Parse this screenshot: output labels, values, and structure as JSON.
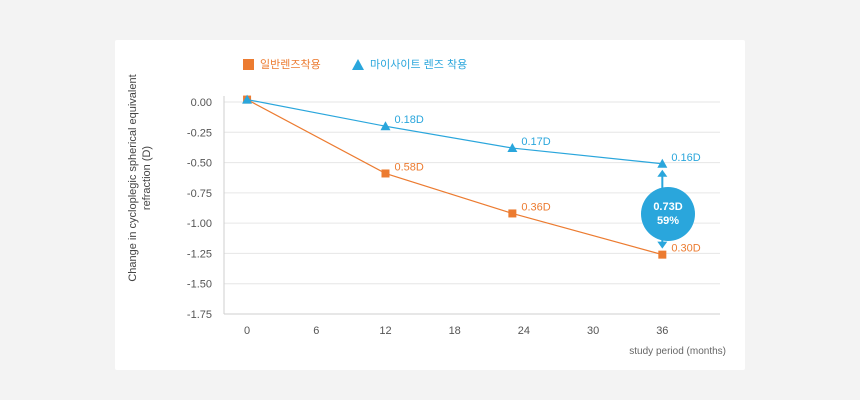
{
  "chart_data": {
    "type": "line",
    "ylabel": "Change in cycloplegic spherical equivalent refraction (D)",
    "xlabel": "study period (months)",
    "x_ticks": [
      0,
      6,
      12,
      18,
      24,
      30,
      36
    ],
    "y_ticks": [
      "0.00",
      "-0.25",
      "-0.50",
      "-0.75",
      "-1.00",
      "-1.25",
      "-1.50",
      "-1.75"
    ],
    "xlim": [
      -2,
      41
    ],
    "ylim": [
      -1.75,
      0.0
    ],
    "grid": true,
    "series": [
      {
        "name": "일반렌즈착용",
        "color": "#ec7b30",
        "marker": "square",
        "x": [
          0,
          12,
          23,
          36
        ],
        "y": [
          0.02,
          -0.59,
          -0.92,
          -1.26
        ],
        "labels": [
          "",
          "0.58D",
          "0.36D",
          "0.30D"
        ]
      },
      {
        "name": "마이사이트 렌즈 착용",
        "color": "#2aa6dc",
        "marker": "triangle",
        "x": [
          0,
          12,
          23,
          36
        ],
        "y": [
          0.02,
          -0.2,
          -0.38,
          -0.51
        ],
        "labels": [
          "",
          "0.18D",
          "0.17D",
          "0.16D"
        ]
      }
    ],
    "annotation": {
      "value": "0.73D",
      "percent": "59%",
      "color": "#2aa6dc"
    }
  }
}
